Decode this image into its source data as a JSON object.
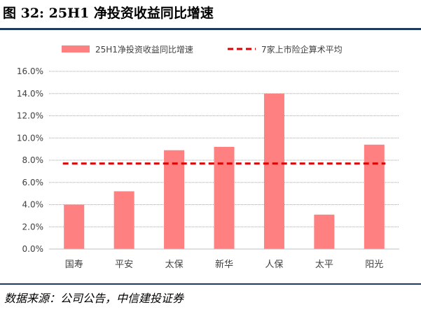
{
  "figure": {
    "title": "图 32: 25H1 净投资收益同比增速",
    "source": "数据来源：公司公告，中信建投证券"
  },
  "colors": {
    "bar": "#ff8080",
    "avg_line": "#e00000",
    "grid": "#a6a6a6",
    "axis_text": "#404040",
    "rule": "#1f3a5f"
  },
  "chart_data": {
    "type": "bar",
    "title": "",
    "xlabel": "",
    "ylabel": "",
    "categories": [
      "国寿",
      "平安",
      "太保",
      "新华",
      "人保",
      "太平",
      "阳光"
    ],
    "series": [
      {
        "name": "25H1净投资收益同比增速",
        "type": "bar",
        "values": [
          4.0,
          5.2,
          8.9,
          9.2,
          14.0,
          3.1,
          9.4
        ]
      },
      {
        "name": "7家上市险企算术平均",
        "type": "line",
        "style": "dashed",
        "values": [
          7.7,
          7.7,
          7.7,
          7.7,
          7.7,
          7.7,
          7.7
        ]
      }
    ],
    "ylim": [
      0,
      16
    ],
    "yticks": [
      0,
      2,
      4,
      6,
      8,
      10,
      12,
      14,
      16
    ],
    "ytick_labels": [
      "0.0%",
      "2.0%",
      "4.0%",
      "6.0%",
      "8.0%",
      "10.0%",
      "12.0%",
      "14.0%",
      "16.0%"
    ],
    "grid": true,
    "legend_position": "top-center"
  }
}
